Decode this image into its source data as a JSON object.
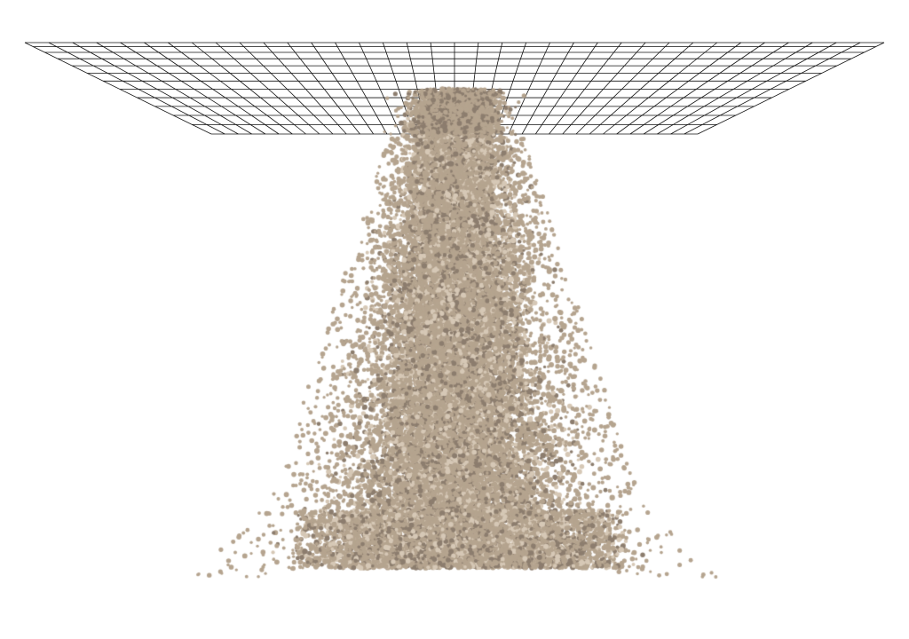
{
  "scene": {
    "background_color": "#ffffff",
    "grid": {
      "line_color": "#111111",
      "columns": 36,
      "rows": 12
    },
    "particles": {
      "base_color": "#b5a48f",
      "shadow_color": "#8c7d6e",
      "highlight_color": "#d6c8b6"
    }
  }
}
